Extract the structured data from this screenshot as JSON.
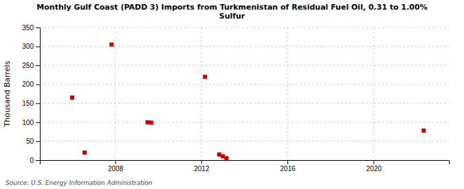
{
  "chart_data": {
    "type": "scatter",
    "title": "Monthly Gulf Coast (PADD 3) Imports from Turkmenistan of Residual Fuel Oil, 0.31 to 1.00%\nSulfur",
    "y_label": "Thousand Barrels",
    "annotation": "Source: U.S. Energy Information Administration",
    "x": [
      2006.0,
      2006.58,
      2007.83,
      2009.5,
      2009.67,
      2012.17,
      2012.83,
      2013.0,
      2013.17,
      2022.33
    ],
    "values": [
      165,
      20,
      305,
      100,
      99,
      220,
      15,
      10,
      5,
      78
    ],
    "color": "#cc0000",
    "marker": "square",
    "xlim": [
      2004.5,
      2023.5
    ],
    "ylim": [
      0,
      350
    ],
    "xticks": [
      2008,
      2012,
      2016,
      2020
    ],
    "yticks": [
      0,
      50,
      100,
      150,
      200,
      250,
      300,
      350
    ],
    "grid": true
  }
}
